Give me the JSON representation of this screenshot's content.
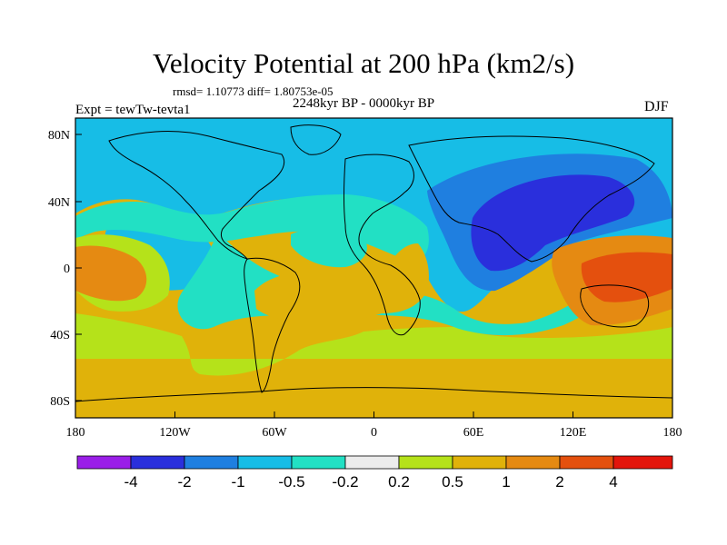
{
  "title": "Velocity Potential at 200 hPa (km2/s)",
  "stats": "rmsd= 1.10773 diff= 1.80753e-05",
  "period": "2248kyr BP - 0000kyr BP",
  "expt": "Expt = tewTw-tevta1",
  "season": "DJF",
  "axes": {
    "y_ticks": [
      "80N",
      "40N",
      "0",
      "40S",
      "80S"
    ],
    "x_ticks": [
      "180",
      "120W",
      "60W",
      "0",
      "60E",
      "120E",
      "180"
    ]
  },
  "colorbar": {
    "labels": [
      "-4",
      "-2",
      "-1",
      "-0.5",
      "-0.2",
      "0.2",
      "0.5",
      "1",
      "2",
      "4"
    ],
    "colors": [
      "#9a1ee8",
      "#2a2fdc",
      "#1f7fe0",
      "#17bde6",
      "#22e0c4",
      "#ececec",
      "#b5e21a",
      "#e0b20a",
      "#e58a12",
      "#e4500e",
      "#e3150c"
    ]
  },
  "fields": {
    "background": "#e0b20a",
    "contours": [
      {
        "level": "-0.5",
        "color": "#17bde6"
      },
      {
        "level": "-1",
        "color": "#1f7fe0"
      },
      {
        "level": "-2",
        "color": "#2a2fdc"
      },
      {
        "level": "0.2",
        "color": "#b5e21a"
      },
      {
        "level": "-0.2",
        "color": "#22e0c4"
      },
      {
        "level": "1",
        "color": "#e0b20a"
      },
      {
        "level": "2",
        "color": "#e58a12"
      },
      {
        "level": "4",
        "color": "#e4500e"
      }
    ]
  }
}
